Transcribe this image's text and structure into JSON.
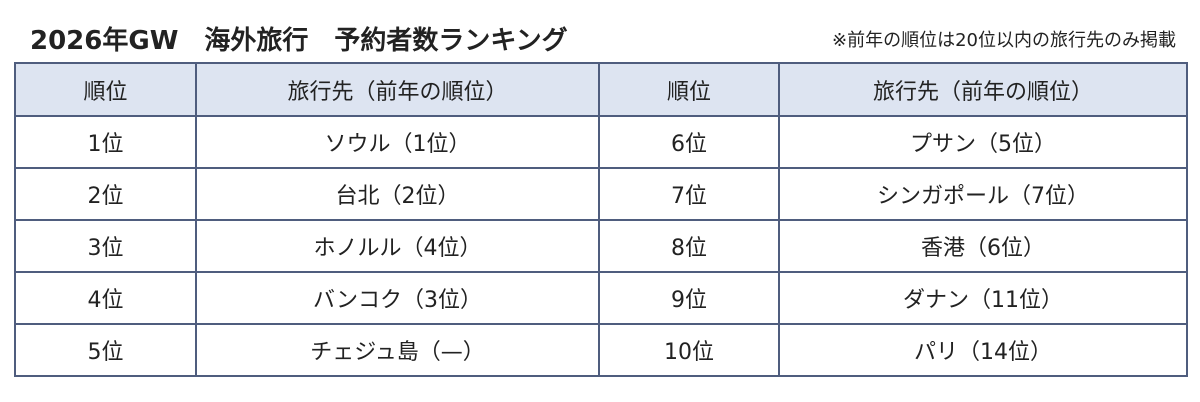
{
  "header": {
    "title": "2026年GW　海外旅行　予約者数ランキング",
    "note": "※前年の順位は20位以内の旅行先のみ掲載"
  },
  "table": {
    "columns": [
      "順位",
      "旅行先（前年の順位）",
      "順位",
      "旅行先（前年の順位）"
    ],
    "rows": [
      [
        "1位",
        "ソウル（1位）",
        "6位",
        "プサン（5位）"
      ],
      [
        "2位",
        "台北（2位）",
        "7位",
        "シンガポール（7位）"
      ],
      [
        "3位",
        "ホノルル（4位）",
        "8位",
        "香港（6位）"
      ],
      [
        "4位",
        "バンコク（3位）",
        "9位",
        "ダナン（11位）"
      ],
      [
        "5位",
        "チェジュ島（—）",
        "10位",
        "パリ（14位）"
      ]
    ]
  }
}
